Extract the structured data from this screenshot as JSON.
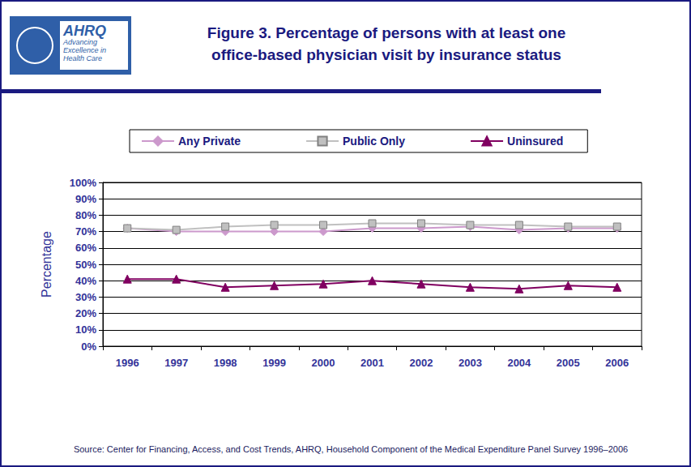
{
  "chart_data": {
    "type": "line",
    "title": "Figure 3. Percentage of persons with at least one\noffice-based physician visit by insurance status",
    "logo": [
      "AHRQ",
      "Advancing Excellence in Health Care"
    ],
    "y_label": "Percentage",
    "source": "Source: Center for Financing, Access, and Cost Trends, AHRQ, Household Component of the Medical Expenditure Panel Survey 1996–2006",
    "categories": [
      "1996",
      "1997",
      "1998",
      "1999",
      "2000",
      "2001",
      "2002",
      "2003",
      "2004",
      "2005",
      "2006"
    ],
    "series": [
      {
        "name": "Any Private",
        "color": "#cc99cc",
        "marker": "diamond",
        "values": [
          72,
          70,
          70,
          70,
          70,
          72,
          72,
          73,
          71,
          72,
          72
        ]
      },
      {
        "name": "Public Only",
        "color": "#c0c0c0",
        "marker": "square",
        "values": [
          72,
          71,
          73,
          74,
          74,
          75,
          75,
          74,
          74,
          73,
          73
        ]
      },
      {
        "name": "Uninsured",
        "color": "#800060",
        "marker": "triangle",
        "values": [
          41,
          41,
          36,
          37,
          38,
          40,
          38,
          36,
          35,
          37,
          36
        ]
      }
    ],
    "ylim": [
      0,
      100
    ],
    "yticks": [
      {
        "value": 0,
        "label": "0%"
      },
      {
        "value": 10,
        "label": "10%"
      },
      {
        "value": 20,
        "label": "20%"
      },
      {
        "value": 30,
        "label": "30%"
      },
      {
        "value": 40,
        "label": "40%"
      },
      {
        "value": 50,
        "label": "50%"
      },
      {
        "value": 60,
        "label": "60%"
      },
      {
        "value": 70,
        "label": "70%"
      },
      {
        "value": 80,
        "label": "80%"
      },
      {
        "value": 90,
        "label": "90%"
      },
      {
        "value": 100,
        "label": "100%"
      }
    ],
    "grid": true,
    "legend": "top"
  }
}
